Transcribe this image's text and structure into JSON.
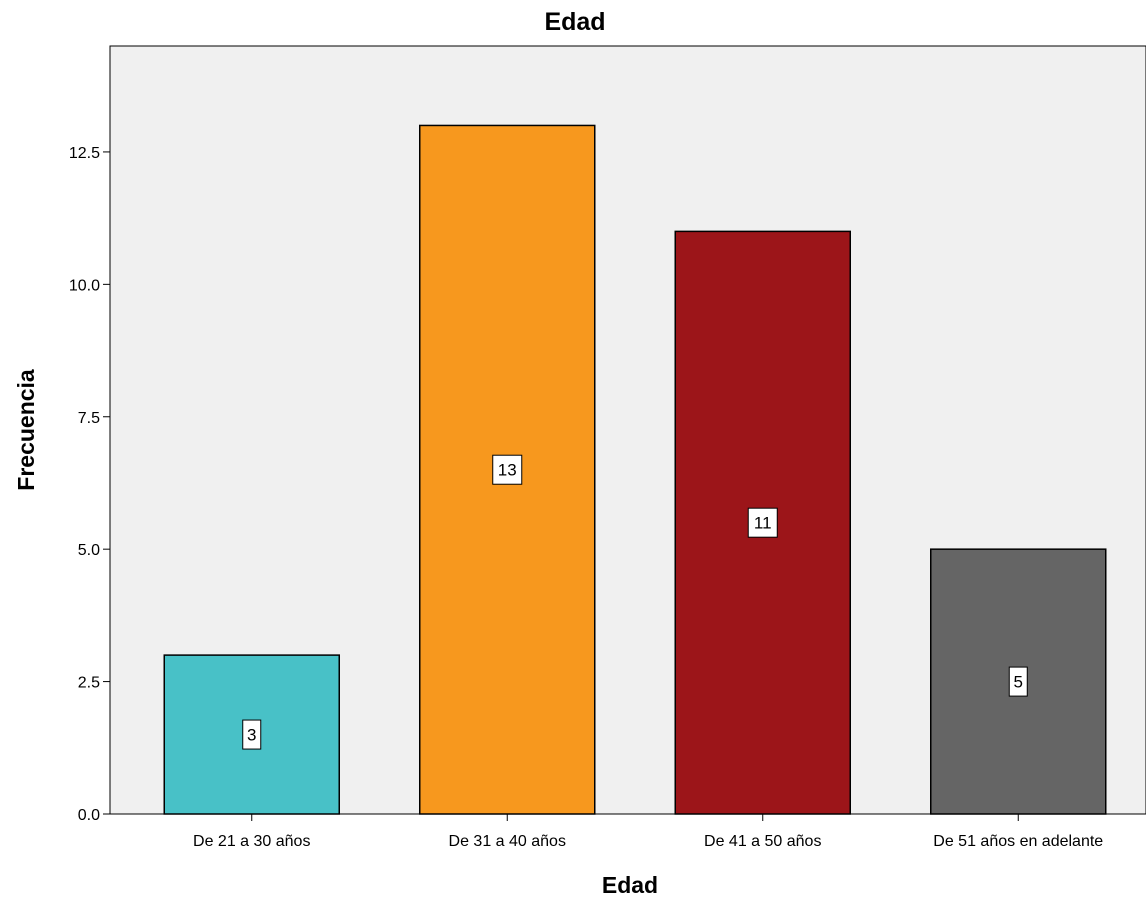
{
  "chart_data": {
    "type": "bar",
    "title": "Edad",
    "xlabel": "Edad",
    "ylabel": "Frecuencia",
    "categories": [
      "De 21 a 30 años",
      "De 31 a 40 años",
      "De 41 a 50 años",
      "De 51 años en adelante"
    ],
    "values": [
      3,
      13,
      11,
      5
    ],
    "data_labels": [
      "3",
      "13",
      "11",
      "5"
    ],
    "colors": [
      "#48c1c7",
      "#f7981e",
      "#9c1519",
      "#656565"
    ],
    "ylim": [
      0,
      14.5
    ],
    "yticks": [
      0,
      2.5,
      5,
      7.5,
      10,
      12.5
    ],
    "ytick_labels": [
      "0.0",
      "2.5",
      "5.0",
      "7.5",
      "10.0",
      "12.5"
    ],
    "plot_background": "#f0f0f0",
    "grid": false,
    "legend": "none"
  }
}
